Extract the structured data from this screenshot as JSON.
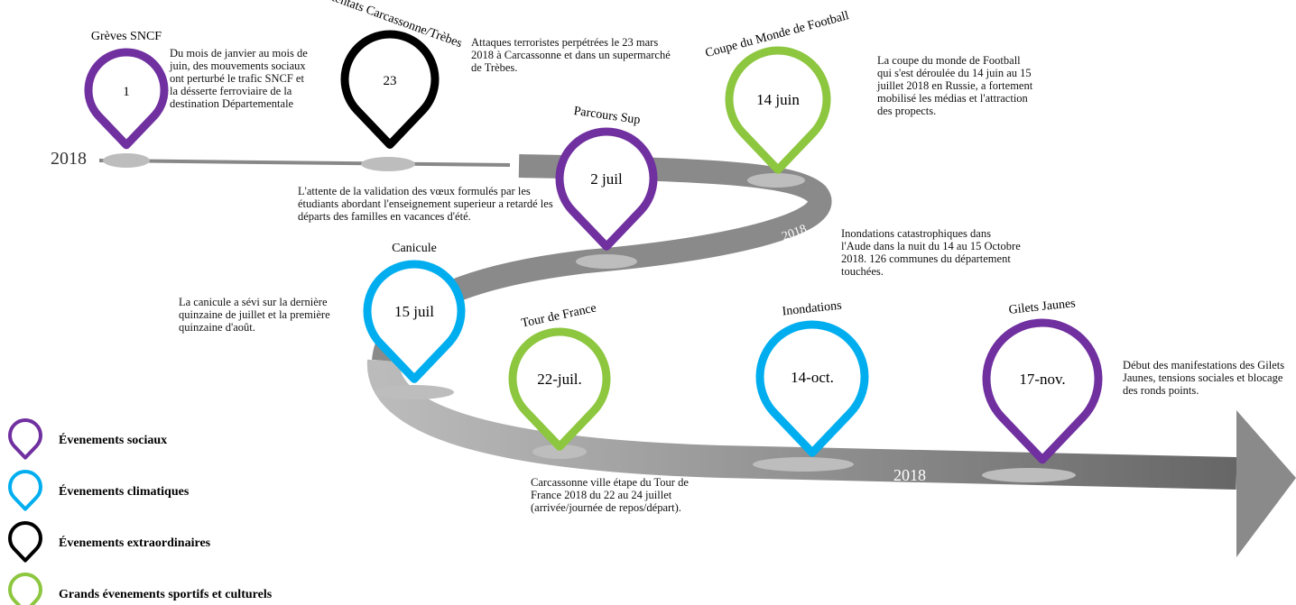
{
  "year_labels": [
    "2018",
    "2018",
    "2018"
  ],
  "events": [
    {
      "title": "Grèves SNCF",
      "date": "1",
      "color": "#7030a0",
      "description": "Du mois de janvier au mois de juin, des mouvements sociaux ont perturbé le trafic SNCF et la désserte ferroviaire de la destination Départementale"
    },
    {
      "title": "Attentats Carcassonne/Trèbes",
      "date": "23",
      "color": "#000000",
      "description": "Attaques terroristes perpétrées le 23 mars 2018 à Carcassonne et dans un supermarché de Trèbes."
    },
    {
      "title": "Parcours Sup",
      "date": "2 juil",
      "color": "#7030a0",
      "description": "L'attente de la validation des vœux formulés par les étudiants abordant l'enseignement superieur a retardé les départs des familles en vacances d'été."
    },
    {
      "title": "Coupe du Monde de Football",
      "date": "14 juin",
      "color": "#8dc63f",
      "description": "La coupe du monde de Football qui s'est déroulée du 14 juin au 15 juillet 2018 en Russie, a fortement mobilisé les médias et l'attraction des propects."
    },
    {
      "title": "Canicule",
      "date": "15 juil",
      "color": "#00aeef",
      "description": "La canicule a sévi sur la dernière quinzaine de juillet et la première quinzaine d'août."
    },
    {
      "title": "Tour de France",
      "date": "22-juil.",
      "color": "#8dc63f",
      "description": "Carcassonne ville étape du Tour de France 2018 du 22 au 24 juillet (arrivée/journée de repos/départ)."
    },
    {
      "title": "Inondations",
      "date": "14-oct.",
      "color": "#00aeef",
      "description": "Inondations catastrophiques dans l'Aude dans la nuit du 14 au 15 Octobre 2018. 126 communes du département touchées."
    },
    {
      "title": "Gilets Jaunes",
      "date": "17-nov.",
      "color": "#7030a0",
      "description": "Début des manifestations des Gilets Jaunes, tensions sociales et blocage des ronds points."
    }
  ],
  "legend": [
    {
      "label": "Évenements sociaux",
      "color": "#7030a0"
    },
    {
      "label": "Évenements climatiques",
      "color": "#00aeef"
    },
    {
      "label": "Évenements extraordinaires",
      "color": "#000000"
    },
    {
      "label": "Grands évenements sportifs et culturels",
      "color": "#8dc63f"
    }
  ]
}
